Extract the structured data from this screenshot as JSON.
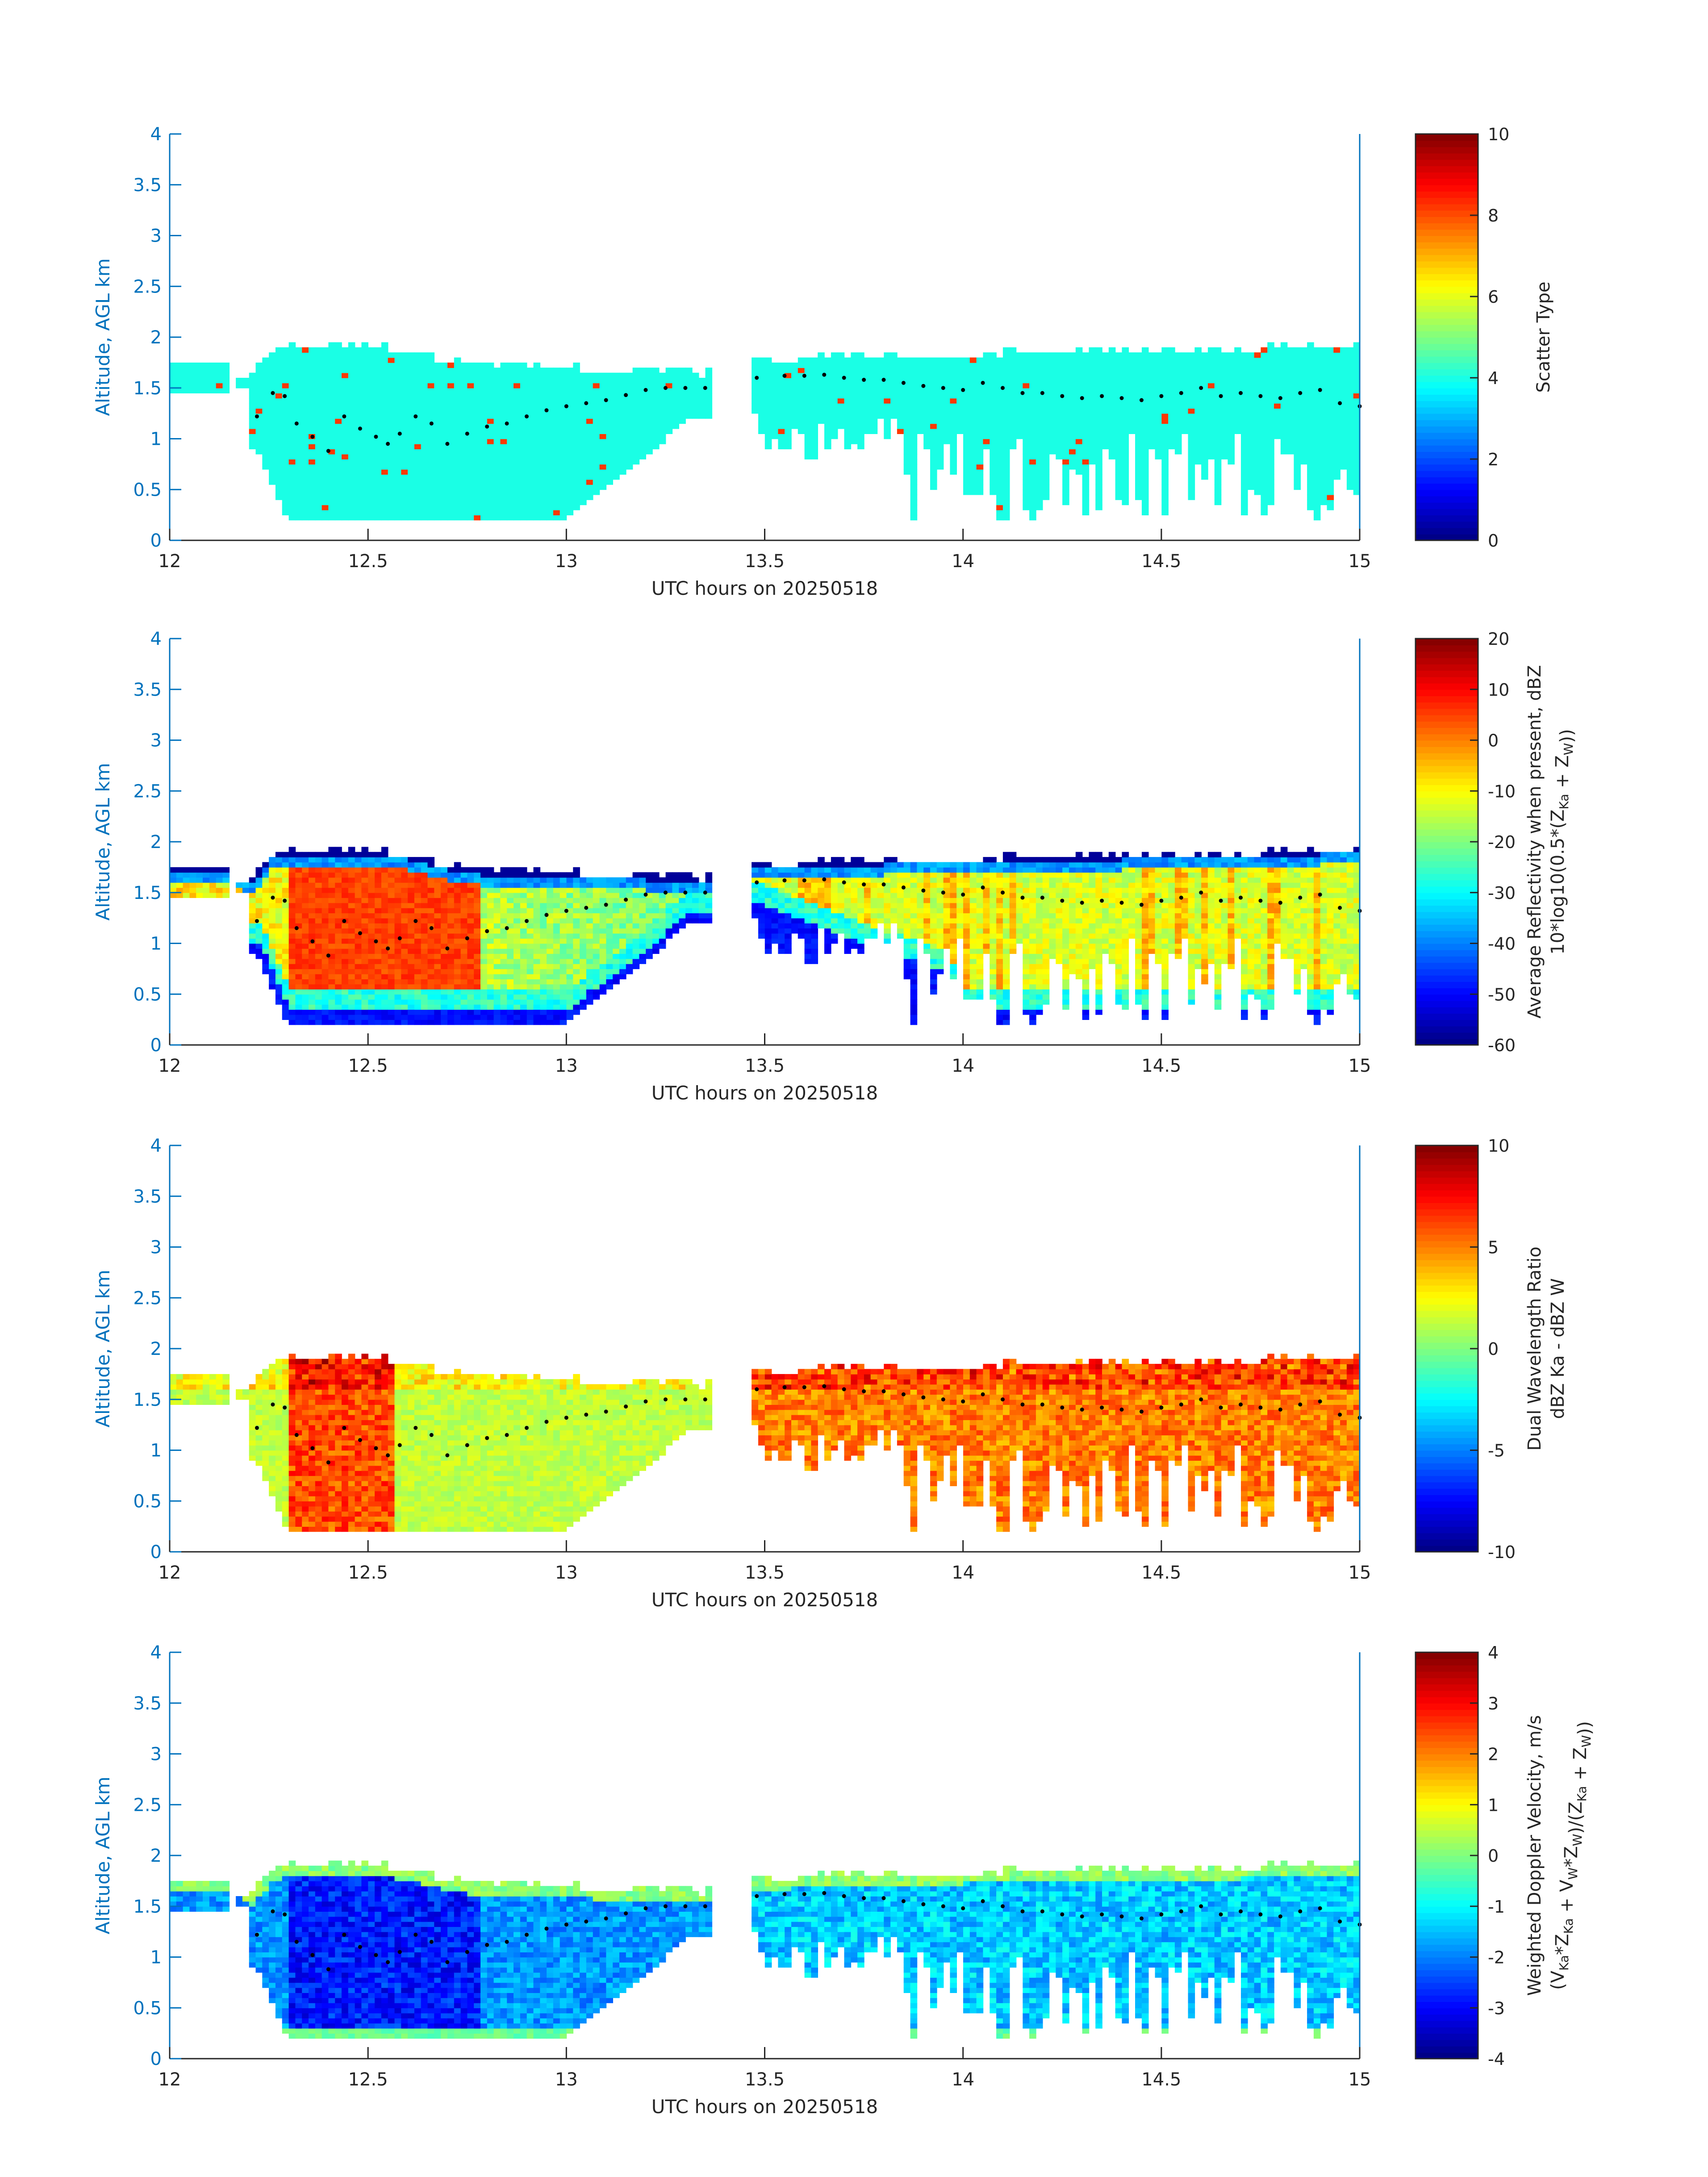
{
  "chart_data": [
    {
      "type": "heatmap",
      "ylabel": "Altitude, AGL km",
      "xlabel": "UTC hours on 20250518",
      "xlim": [
        12,
        15
      ],
      "ylim": [
        0,
        4
      ],
      "xticks": [
        "12",
        "12.5",
        "13",
        "13.5",
        "14",
        "14.5",
        "15"
      ],
      "yticks": [
        "0",
        "0.5",
        "1",
        "1.5",
        "2",
        "2.5",
        "3",
        "3.5",
        "4"
      ],
      "colorbar": {
        "label_line1": "Scatter Type",
        "label_line2": "",
        "ticks": [
          "0",
          "2",
          "4",
          "6",
          "8",
          "10"
        ],
        "range": [
          0,
          10
        ]
      },
      "field": "scatter",
      "value_range": [
        0,
        10
      ]
    },
    {
      "type": "heatmap",
      "ylabel": "Altitude, AGL km",
      "xlabel": "UTC hours on 20250518",
      "xlim": [
        12,
        15
      ],
      "ylim": [
        0,
        4
      ],
      "xticks": [
        "12",
        "12.5",
        "13",
        "13.5",
        "14",
        "14.5",
        "15"
      ],
      "yticks": [
        "0",
        "0.5",
        "1",
        "1.5",
        "2",
        "2.5",
        "3",
        "3.5",
        "4"
      ],
      "colorbar": {
        "label_line1": "Average Reflectivity when present, dBZ",
        "label_line2": "10*log10(0.5*(Z_Ka + Z_W))",
        "ticks": [
          "-60",
          "-50",
          "-40",
          "-30",
          "-20",
          "-10",
          "0",
          "10",
          "20"
        ],
        "range": [
          -60,
          20
        ]
      },
      "field": "reflectivity",
      "value_range": [
        -60,
        20
      ]
    },
    {
      "type": "heatmap",
      "ylabel": "Altitude, AGL km",
      "xlabel": "UTC hours on 20250518",
      "xlim": [
        12,
        15
      ],
      "ylim": [
        0,
        4
      ],
      "xticks": [
        "12",
        "12.5",
        "13",
        "13.5",
        "14",
        "14.5",
        "15"
      ],
      "yticks": [
        "0",
        "0.5",
        "1",
        "1.5",
        "2",
        "2.5",
        "3",
        "3.5",
        "4"
      ],
      "colorbar": {
        "label_line1": "Dual Wavelength Ratio",
        "label_line2": "dBZ Ka - dBZ W",
        "ticks": [
          "-10",
          "-5",
          "0",
          "5",
          "10"
        ],
        "range": [
          -10,
          10
        ]
      },
      "field": "dwr",
      "value_range": [
        -10,
        10
      ]
    },
    {
      "type": "heatmap",
      "ylabel": "Altitude, AGL km",
      "xlabel": "UTC hours on 20250518",
      "xlim": [
        12,
        15
      ],
      "ylim": [
        0,
        4
      ],
      "xticks": [
        "12",
        "12.5",
        "13",
        "13.5",
        "14",
        "14.5",
        "15"
      ],
      "yticks": [
        "0",
        "0.5",
        "1",
        "1.5",
        "2",
        "2.5",
        "3",
        "3.5",
        "4"
      ],
      "colorbar": {
        "label_line1": "Weighted Doppler Velocity, m/s",
        "label_line2": "(V_Ka*Z_Ka + V_W*Z_W)/(Z_Ka + Z_W))",
        "ticks": [
          "-4",
          "-3",
          "-2",
          "-1",
          "0",
          "1",
          "2",
          "3",
          "4"
        ],
        "range": [
          -4,
          4
        ]
      },
      "field": "velocity",
      "value_range": [
        -4,
        4
      ]
    }
  ],
  "cloud_top_km": [
    [
      12.0,
      1.75
    ],
    [
      12.15,
      1.75
    ],
    [
      12.2,
      1.6
    ],
    [
      12.25,
      1.85
    ],
    [
      12.3,
      1.88
    ],
    [
      12.5,
      1.9
    ],
    [
      12.6,
      1.85
    ],
    [
      12.7,
      1.75
    ],
    [
      12.8,
      1.68
    ],
    [
      13.0,
      1.68
    ],
    [
      13.2,
      1.65
    ],
    [
      13.35,
      1.62
    ],
    [
      13.46,
      1.75
    ],
    [
      13.6,
      1.78
    ],
    [
      13.8,
      1.8
    ],
    [
      14.0,
      1.82
    ],
    [
      14.2,
      1.83
    ],
    [
      14.4,
      1.85
    ],
    [
      14.6,
      1.86
    ],
    [
      14.8,
      1.88
    ],
    [
      15.0,
      1.92
    ]
  ],
  "cloud_base_km": [
    [
      12.22,
      0.9
    ],
    [
      12.3,
      0.2
    ],
    [
      13.0,
      0.2
    ],
    [
      13.05,
      0.4
    ],
    [
      13.2,
      0.8
    ],
    [
      13.3,
      1.2
    ],
    [
      13.36,
      1.2
    ],
    [
      13.46,
      1.3
    ],
    [
      13.6,
      1.1
    ],
    [
      13.8,
      0.8
    ],
    [
      13.95,
      0.6
    ],
    [
      14.0,
      0.2
    ],
    [
      15.0,
      0.2
    ]
  ],
  "gap_hours": [
    13.37,
    13.46
  ],
  "top_layer_hours": [
    12.0,
    12.15
  ],
  "top_layer_km": [
    1.45,
    1.75
  ],
  "boundary_dots_km": [
    [
      12.22,
      1.22
    ],
    [
      12.26,
      1.45
    ],
    [
      12.29,
      1.42
    ],
    [
      12.32,
      1.15
    ],
    [
      12.36,
      1.02
    ],
    [
      12.4,
      0.88
    ],
    [
      12.44,
      1.22
    ],
    [
      12.48,
      1.1
    ],
    [
      12.52,
      1.02
    ],
    [
      12.55,
      0.95
    ],
    [
      12.58,
      1.05
    ],
    [
      12.62,
      1.22
    ],
    [
      12.66,
      1.15
    ],
    [
      12.7,
      0.95
    ],
    [
      12.75,
      1.05
    ],
    [
      12.8,
      1.12
    ],
    [
      12.85,
      1.15
    ],
    [
      12.9,
      1.22
    ],
    [
      12.95,
      1.28
    ],
    [
      13.0,
      1.32
    ],
    [
      13.05,
      1.35
    ],
    [
      13.1,
      1.38
    ],
    [
      13.15,
      1.43
    ],
    [
      13.2,
      1.48
    ],
    [
      13.25,
      1.5
    ],
    [
      13.3,
      1.5
    ],
    [
      13.35,
      1.5
    ],
    [
      13.48,
      1.6
    ],
    [
      13.55,
      1.62
    ],
    [
      13.6,
      1.62
    ],
    [
      13.65,
      1.63
    ],
    [
      13.7,
      1.6
    ],
    [
      13.75,
      1.58
    ],
    [
      13.8,
      1.58
    ],
    [
      13.85,
      1.55
    ],
    [
      13.9,
      1.52
    ],
    [
      13.95,
      1.5
    ],
    [
      14.0,
      1.48
    ],
    [
      14.05,
      1.55
    ],
    [
      14.1,
      1.5
    ],
    [
      14.15,
      1.45
    ],
    [
      14.2,
      1.45
    ],
    [
      14.25,
      1.42
    ],
    [
      14.3,
      1.4
    ],
    [
      14.35,
      1.42
    ],
    [
      14.4,
      1.4
    ],
    [
      14.45,
      1.38
    ],
    [
      14.5,
      1.42
    ],
    [
      14.55,
      1.45
    ],
    [
      14.6,
      1.5
    ],
    [
      14.65,
      1.42
    ],
    [
      14.7,
      1.45
    ],
    [
      14.75,
      1.42
    ],
    [
      14.8,
      1.4
    ],
    [
      14.85,
      1.45
    ],
    [
      14.9,
      1.48
    ],
    [
      14.95,
      1.35
    ],
    [
      15.0,
      1.32
    ]
  ]
}
